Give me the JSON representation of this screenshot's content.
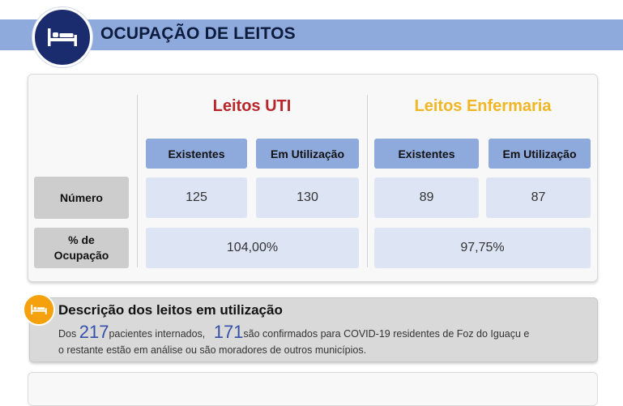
{
  "header": {
    "title": "OCUPAÇÃO DE LEITOS",
    "icon": "bed-icon",
    "bar_color": "#8ea9dc",
    "circle_color": "#1a2b6e"
  },
  "table": {
    "groups": [
      {
        "title": "Leitos UTI",
        "color": "#b8262b"
      },
      {
        "title": "Leitos Enfermaria",
        "color": "#f1b624"
      }
    ],
    "column_headers": [
      "Existentes",
      "Em Utilização",
      "Existentes",
      "Em Utilização"
    ],
    "row_headers": {
      "numero": "Número",
      "ocupacao_line1": "% de",
      "ocupacao_line2": "Ocupação"
    },
    "numero": {
      "uti_existentes": "125",
      "uti_em_utilizacao": "130",
      "enf_existentes": "89",
      "enf_em_utilizacao": "87"
    },
    "ocupacao": {
      "uti": "104,00%",
      "enfermaria": "97,75%"
    }
  },
  "description": {
    "icon": "bed-icon",
    "title": "Descrição dos leitos em utilização",
    "prefix": "Dos",
    "internados": "217",
    "internados_text": "pacientes internados,",
    "confirmados": "171",
    "confirmados_text": "são confirmados para COVID-19 residentes de Foz do Iguaçu e",
    "line2": "o restante estão em análise ou são moradores de outros municípios.",
    "circle_color": "#f4a10d"
  }
}
